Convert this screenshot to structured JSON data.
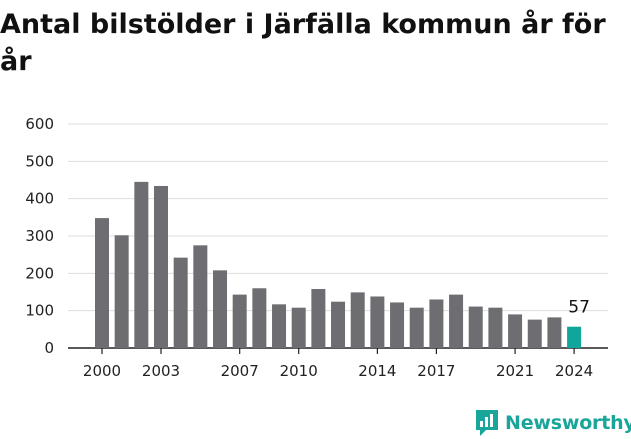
{
  "chart_data": {
    "type": "bar",
    "title": "Antal bilstölder i Järfälla kommun år för år",
    "xlabel": "",
    "ylabel": "",
    "categories": [
      "2000",
      "2001",
      "2002",
      "2003",
      "2004",
      "2005",
      "2006",
      "2007",
      "2008",
      "2009",
      "2010",
      "2011",
      "2012",
      "2013",
      "2014",
      "2015",
      "2016",
      "2017",
      "2018",
      "2019",
      "2020",
      "2021",
      "2022",
      "2023",
      "2024"
    ],
    "values": [
      348,
      302,
      445,
      434,
      242,
      275,
      208,
      143,
      160,
      117,
      108,
      158,
      124,
      149,
      138,
      122,
      108,
      130,
      143,
      111,
      108,
      90,
      76,
      82,
      57
    ],
    "ylim": [
      0,
      600
    ],
    "yticks": [
      0,
      100,
      200,
      300,
      400,
      500,
      600
    ],
    "xtick_labels": [
      "2000",
      "2003",
      "2007",
      "2010",
      "2014",
      "2017",
      "2021",
      "2024"
    ],
    "highlight": {
      "category": "2024",
      "label": "57"
    },
    "grid": true,
    "colors": {
      "bar": "#6e6d72",
      "highlight": "#11a69c",
      "grid": "#dddddd"
    }
  },
  "logo": {
    "text": "Newsworthy",
    "icon": "bar-chart-speech-bubble-icon",
    "color": "#1aa59b"
  }
}
